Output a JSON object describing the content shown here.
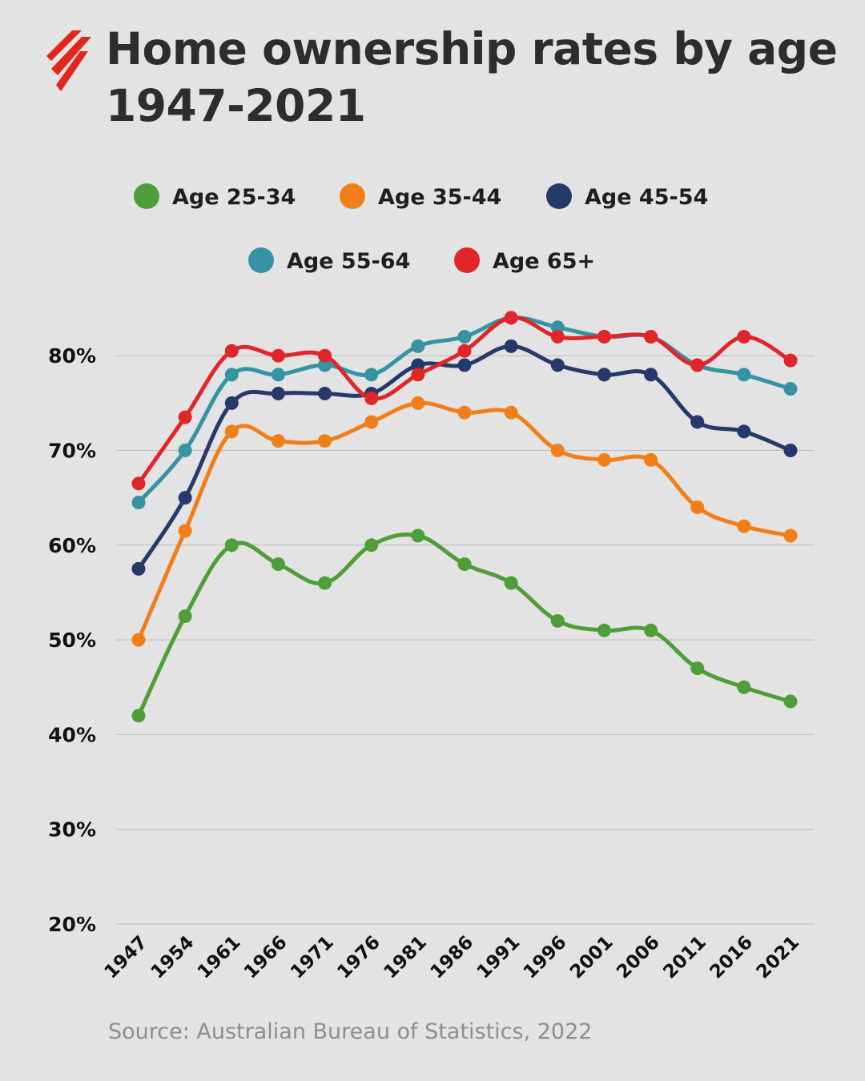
{
  "header": {
    "title_line1": "Home ownership rates by age",
    "title_line2": "1947-2021",
    "logo_icon": "sbs-logo-icon",
    "logo_color": "#e1261c"
  },
  "source": "Source: Australian Bureau of Statistics, 2022",
  "colors": {
    "background": "#e3e3e3",
    "gridline": "#bdbdbd"
  },
  "chart_data": {
    "type": "line",
    "title": "Home ownership rates by age 1947-2021",
    "x": [
      "1947",
      "1954",
      "1961",
      "1966",
      "1971",
      "1976",
      "1981",
      "1986",
      "1991",
      "1996",
      "2001",
      "2006",
      "2011",
      "2016",
      "2021"
    ],
    "y_ticks": [
      "20%",
      "30%",
      "40%",
      "50%",
      "60%",
      "70%",
      "80%"
    ],
    "y_tick_values": [
      20,
      30,
      40,
      50,
      60,
      70,
      80
    ],
    "ylim": [
      20,
      85
    ],
    "unit": "%",
    "grid": true,
    "legend": "top",
    "series": [
      {
        "name": "Age 25-34",
        "color": "#4f9e3a",
        "values": [
          42,
          52.5,
          60,
          58,
          56,
          60,
          61,
          58,
          56,
          52,
          51,
          51,
          47,
          45,
          43.5
        ]
      },
      {
        "name": "Age 35-44",
        "color": "#f07f1a",
        "values": [
          50,
          61.5,
          72,
          71,
          71,
          73,
          75,
          74,
          74,
          70,
          69,
          69,
          64,
          62,
          61
        ]
      },
      {
        "name": "Age 45-54",
        "color": "#253a6b",
        "values": [
          57.5,
          65,
          75,
          76,
          76,
          76,
          79,
          79,
          81,
          79,
          78,
          78,
          73,
          72,
          70
        ]
      },
      {
        "name": "Age 55-64",
        "color": "#3593a4",
        "values": [
          64.5,
          70,
          78,
          78,
          79,
          78,
          81,
          82,
          84,
          83,
          82,
          82,
          79,
          78,
          76.5
        ]
      },
      {
        "name": "Age 65+",
        "color": "#e1262a",
        "values": [
          66.5,
          73.5,
          80.5,
          80,
          80,
          75.5,
          78,
          80.5,
          84,
          82,
          82,
          82,
          79,
          82,
          79.5
        ]
      }
    ]
  }
}
